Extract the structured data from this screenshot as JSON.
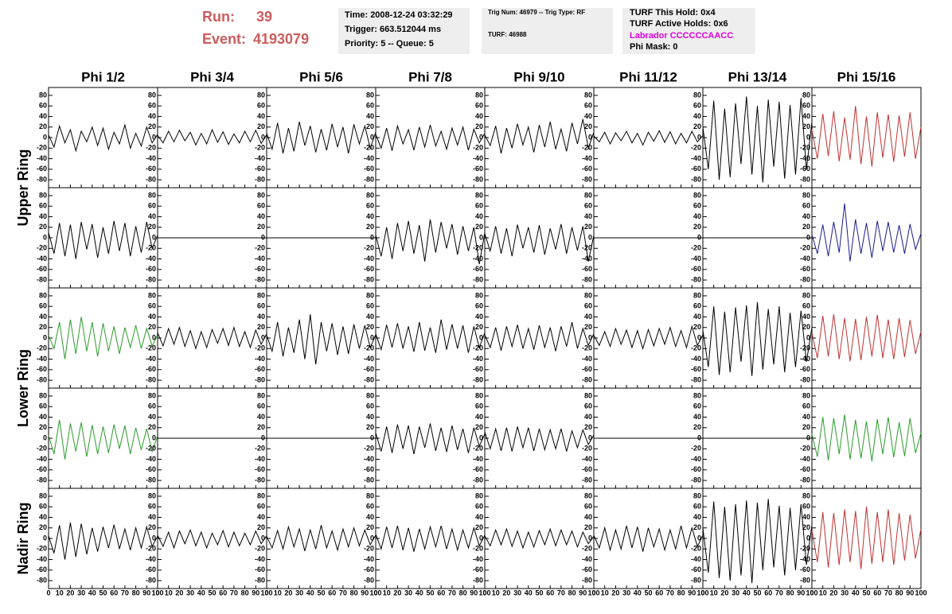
{
  "header": {
    "run_label": "Run:",
    "run": 39,
    "event_label": "Event:",
    "event": 4193079,
    "info": [
      [
        "Time: 2008-12-24 03:32:29",
        "Trigger: 663.512044 ms",
        "Priority: 5 -- Queue: 5"
      ],
      [
        "Trig Num: 46979 -- Trig Type: RF",
        "TURF: 46988"
      ],
      [
        "TURF This Hold: 0x4",
        "TURF Active Holds: 0x6",
        "Labrador CCCCCCAACC",
        "Phi Mask: 0"
      ]
    ]
  },
  "chart_data": {
    "type": "line",
    "column_labels": [
      "Phi 1/2",
      "Phi 3/4",
      "Phi 5/6",
      "Phi 7/8",
      "Phi 9/10",
      "Phi 11/12",
      "Phi 13/14",
      "Phi 15/16"
    ],
    "row_labels": [
      "Upper Ring",
      "Lower Ring",
      "Nadir Ring"
    ],
    "x": [
      0,
      5,
      10,
      15,
      20,
      25,
      30,
      35,
      40,
      45,
      50,
      55,
      60,
      65,
      70,
      75,
      80,
      85,
      90,
      95,
      100
    ],
    "xlim": [
      0,
      100
    ],
    "xticks": [
      0,
      10,
      20,
      30,
      40,
      50,
      60,
      70,
      80,
      90,
      100
    ],
    "ylim": [
      -95,
      95
    ],
    "yticks": [
      -80,
      -60,
      -40,
      -20,
      0,
      20,
      40,
      60,
      80
    ],
    "rows": [
      [
        {
          "color": "#000000",
          "values": [
            5,
            -18,
            22,
            -10,
            15,
            -25,
            12,
            -8,
            20,
            -15,
            18,
            -22,
            10,
            -12,
            24,
            -20,
            8,
            -16,
            20,
            -10,
            6
          ]
        },
        {
          "color": "#000000",
          "values": [
            4,
            -10,
            12,
            -8,
            14,
            -6,
            10,
            -14,
            8,
            -12,
            15,
            -9,
            11,
            -13,
            7,
            -10,
            12,
            -8,
            14,
            -11,
            5
          ]
        },
        {
          "color": "#000000",
          "values": [
            8,
            -22,
            28,
            -30,
            18,
            -26,
            30,
            -15,
            22,
            -28,
            16,
            -24,
            26,
            -18,
            20,
            -30,
            25,
            -12,
            22,
            -20,
            10
          ]
        },
        {
          "color": "#000000",
          "values": [
            6,
            -20,
            18,
            -25,
            22,
            -12,
            15,
            -24,
            20,
            -18,
            24,
            -16,
            12,
            -22,
            18,
            -14,
            20,
            -24,
            16,
            -10,
            8
          ]
        },
        {
          "color": "#000000",
          "values": [
            5,
            -15,
            22,
            -30,
            18,
            -20,
            26,
            -14,
            20,
            -28,
            24,
            -18,
            30,
            -22,
            16,
            -26,
            28,
            -12,
            35,
            -20,
            10
          ]
        },
        {
          "color": "#000000",
          "values": [
            3,
            -8,
            10,
            -12,
            9,
            -6,
            12,
            -10,
            8,
            -14,
            10,
            -7,
            13,
            -9,
            11,
            -12,
            8,
            -10,
            12,
            -8,
            4
          ]
        },
        {
          "color": "#000000",
          "values": [
            20,
            -60,
            70,
            -80,
            55,
            -75,
            65,
            -50,
            78,
            -70,
            60,
            -85,
            72,
            -55,
            68,
            -78,
            62,
            -70,
            75,
            -60,
            30
          ]
        },
        {
          "color": "#c03030",
          "values": [
            15,
            -40,
            45,
            -35,
            50,
            -45,
            38,
            -42,
            60,
            -50,
            40,
            -55,
            48,
            -38,
            44,
            -46,
            42,
            -36,
            48,
            -40,
            20
          ]
        }
      ],
      [
        {
          "color": "#000000",
          "values": [
            10,
            -30,
            28,
            -35,
            25,
            -40,
            30,
            -22,
            26,
            -38,
            20,
            -30,
            32,
            -25,
            28,
            -35,
            22,
            -28,
            30,
            -20,
            5
          ]
        },
        {
          "color": "#000000",
          "values": [
            0,
            0,
            0,
            0,
            0,
            0,
            0,
            0,
            0,
            0,
            0,
            0,
            0,
            0,
            0,
            0,
            0,
            0,
            0,
            0,
            0
          ]
        },
        {
          "color": "#000000",
          "values": [
            0,
            0,
            0,
            0,
            0,
            0,
            0,
            0,
            0,
            0,
            0,
            0,
            0,
            0,
            0,
            0,
            0,
            0,
            0,
            0,
            0
          ]
        },
        {
          "color": "#000000",
          "values": [
            5,
            -35,
            20,
            -40,
            28,
            -25,
            32,
            -30,
            24,
            -45,
            35,
            -28,
            30,
            -20,
            26,
            -32,
            22,
            -25,
            20,
            -50,
            10
          ]
        },
        {
          "color": "#000000",
          "values": [
            8,
            -25,
            22,
            -30,
            18,
            -35,
            25,
            -20,
            20,
            -28,
            24,
            -32,
            18,
            -22,
            26,
            -30,
            20,
            -24,
            22,
            -45,
            5
          ]
        },
        {
          "color": "#000000",
          "values": [
            0,
            0,
            0,
            0,
            0,
            0,
            0,
            0,
            0,
            0,
            0,
            0,
            0,
            0,
            0,
            0,
            0,
            0,
            0,
            0,
            0
          ]
        },
        {
          "color": "#000000",
          "values": [
            0,
            0,
            0,
            0,
            0,
            0,
            0,
            0,
            0,
            0,
            0,
            0,
            0,
            0,
            0,
            0,
            0,
            0,
            0,
            0,
            0
          ]
        },
        {
          "color": "#1a1a8c",
          "values": [
            6,
            -30,
            25,
            -35,
            30,
            -28,
            65,
            -45,
            35,
            -30,
            28,
            -38,
            32,
            -25,
            30,
            -28,
            24,
            -30,
            26,
            -22,
            8
          ]
        }
      ],
      [
        {
          "color": "#2a9a2a",
          "values": [
            5,
            -20,
            30,
            -40,
            35,
            -30,
            40,
            -25,
            30,
            -35,
            28,
            -25,
            22,
            -30,
            20,
            -18,
            24,
            -20,
            18,
            -15,
            6
          ]
        },
        {
          "color": "#000000",
          "values": [
            10,
            -15,
            18,
            -12,
            20,
            -16,
            14,
            -20,
            12,
            -18,
            16,
            -10,
            18,
            -14,
            20,
            -16,
            12,
            -18,
            15,
            -12,
            8
          ]
        },
        {
          "color": "#000000",
          "values": [
            5,
            -25,
            30,
            -35,
            20,
            -28,
            35,
            -40,
            45,
            -50,
            30,
            -25,
            28,
            -32,
            22,
            -30,
            26,
            -20,
            24,
            -18,
            6
          ]
        },
        {
          "color": "#000000",
          "values": [
            8,
            -22,
            25,
            -18,
            28,
            -20,
            22,
            -26,
            30,
            -24,
            20,
            -28,
            35,
            -22,
            26,
            -20,
            24,
            -28,
            22,
            -18,
            10
          ]
        },
        {
          "color": "#000000",
          "values": [
            6,
            -18,
            20,
            -24,
            22,
            -16,
            25,
            -20,
            18,
            -22,
            24,
            -18,
            20,
            -25,
            22,
            -16,
            30,
            -20,
            18,
            -14,
            8
          ]
        },
        {
          "color": "#000000",
          "values": [
            5,
            -14,
            12,
            -16,
            18,
            -12,
            15,
            -18,
            14,
            -20,
            16,
            -15,
            18,
            -12,
            20,
            -16,
            14,
            -18,
            22,
            -14,
            6
          ]
        },
        {
          "color": "#000000",
          "values": [
            15,
            -55,
            60,
            -70,
            50,
            -65,
            58,
            -45,
            62,
            -72,
            68,
            -60,
            55,
            -50,
            60,
            -65,
            48,
            -55,
            52,
            -45,
            20
          ]
        },
        {
          "color": "#c03030",
          "values": [
            10,
            -38,
            42,
            -35,
            45,
            -40,
            38,
            -44,
            36,
            -42,
            40,
            -35,
            44,
            -38,
            35,
            -40,
            38,
            -36,
            34,
            -30,
            12
          ]
        }
      ],
      [
        {
          "color": "#2a9a2a",
          "values": [
            5,
            -30,
            35,
            -40,
            28,
            -25,
            30,
            -35,
            25,
            -30,
            22,
            -28,
            26,
            -20,
            24,
            -30,
            20,
            -22,
            18,
            -25,
            4
          ]
        },
        {
          "color": "#000000",
          "values": [
            0,
            0,
            0,
            0,
            0,
            0,
            0,
            0,
            0,
            0,
            0,
            0,
            0,
            0,
            0,
            0,
            0,
            0,
            0,
            0,
            0
          ]
        },
        {
          "color": "#000000",
          "values": [
            0,
            0,
            0,
            0,
            0,
            0,
            0,
            0,
            0,
            0,
            0,
            0,
            0,
            0,
            0,
            0,
            0,
            0,
            0,
            0,
            0
          ]
        },
        {
          "color": "#000000",
          "values": [
            10,
            -25,
            22,
            -28,
            26,
            -20,
            24,
            -30,
            22,
            -18,
            28,
            -24,
            20,
            -26,
            24,
            -22,
            18,
            -28,
            20,
            -15,
            8
          ]
        },
        {
          "color": "#000000",
          "values": [
            12,
            -20,
            18,
            -24,
            20,
            -25,
            22,
            -18,
            20,
            -24,
            18,
            -22,
            16,
            -20,
            18,
            -25,
            14,
            -18,
            16,
            -12,
            6
          ]
        },
        {
          "color": "#000000",
          "values": [
            0,
            0,
            0,
            0,
            0,
            0,
            0,
            0,
            0,
            0,
            0,
            0,
            0,
            0,
            0,
            0,
            0,
            0,
            0,
            0,
            0
          ]
        },
        {
          "color": "#000000",
          "values": [
            0,
            0,
            0,
            0,
            0,
            0,
            0,
            0,
            0,
            0,
            0,
            0,
            0,
            0,
            0,
            0,
            0,
            0,
            0,
            0,
            0
          ]
        },
        {
          "color": "#2a9a2a",
          "values": [
            8,
            -35,
            40,
            -42,
            38,
            -30,
            45,
            -40,
            35,
            -38,
            32,
            -44,
            36,
            -30,
            40,
            -36,
            30,
            -34,
            38,
            -28,
            10
          ]
        }
      ],
      [
        {
          "color": "#000000",
          "values": [
            5,
            -28,
            25,
            -40,
            30,
            -35,
            28,
            -30,
            20,
            -25,
            22,
            -18,
            26,
            -20,
            18,
            -22,
            20,
            -18,
            22,
            -15,
            4
          ]
        },
        {
          "color": "#000000",
          "values": [
            6,
            -15,
            12,
            -18,
            14,
            -10,
            16,
            -14,
            12,
            -18,
            10,
            -12,
            15,
            -16,
            12,
            -14,
            10,
            -12,
            14,
            -10,
            5
          ]
        },
        {
          "color": "#000000",
          "values": [
            4,
            -18,
            15,
            -20,
            22,
            -16,
            18,
            -24,
            16,
            -20,
            25,
            -18,
            14,
            -22,
            18,
            -16,
            20,
            -14,
            16,
            -12,
            6
          ]
        },
        {
          "color": "#000000",
          "values": [
            8,
            -20,
            22,
            -18,
            24,
            -22,
            20,
            -25,
            18,
            -20,
            22,
            -16,
            24,
            -20,
            18,
            -22,
            16,
            -18,
            20,
            -14,
            6
          ]
        },
        {
          "color": "#000000",
          "values": [
            5,
            -14,
            16,
            -12,
            18,
            -15,
            14,
            -18,
            12,
            -16,
            15,
            -12,
            18,
            -14,
            16,
            -12,
            14,
            -16,
            12,
            -10,
            4
          ]
        },
        {
          "color": "#000000",
          "values": [
            6,
            -18,
            20,
            -22,
            16,
            -20,
            24,
            -18,
            22,
            -25,
            20,
            -16,
            18,
            -22,
            16,
            -20,
            24,
            -18,
            20,
            -15,
            6
          ]
        },
        {
          "color": "#000000",
          "values": [
            20,
            -65,
            70,
            -75,
            60,
            -80,
            65,
            -70,
            72,
            -85,
            68,
            -60,
            75,
            -55,
            62,
            -70,
            58,
            -60,
            65,
            -50,
            25
          ]
        },
        {
          "color": "#c03030",
          "values": [
            15,
            -45,
            50,
            -55,
            48,
            -50,
            55,
            -45,
            52,
            -58,
            60,
            -48,
            50,
            -45,
            55,
            -50,
            48,
            -42,
            45,
            -38,
            18
          ]
        }
      ]
    ]
  }
}
